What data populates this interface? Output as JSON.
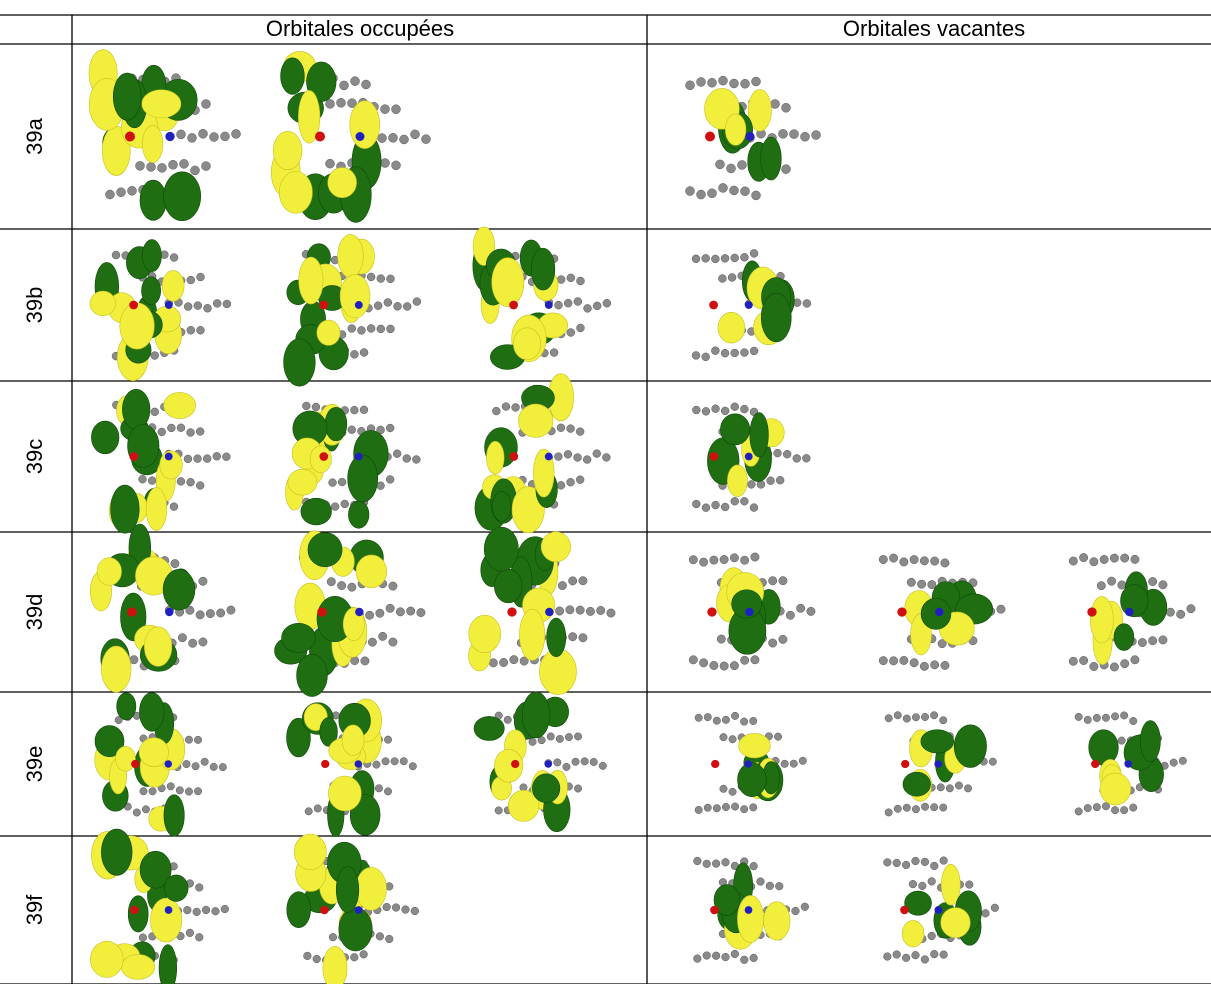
{
  "table": {
    "columns": [
      "Orbitales occupées",
      "Orbitales vacantes"
    ],
    "rows": [
      "39a",
      "39b",
      "39c",
      "39d",
      "39e",
      "39f"
    ]
  }
}
